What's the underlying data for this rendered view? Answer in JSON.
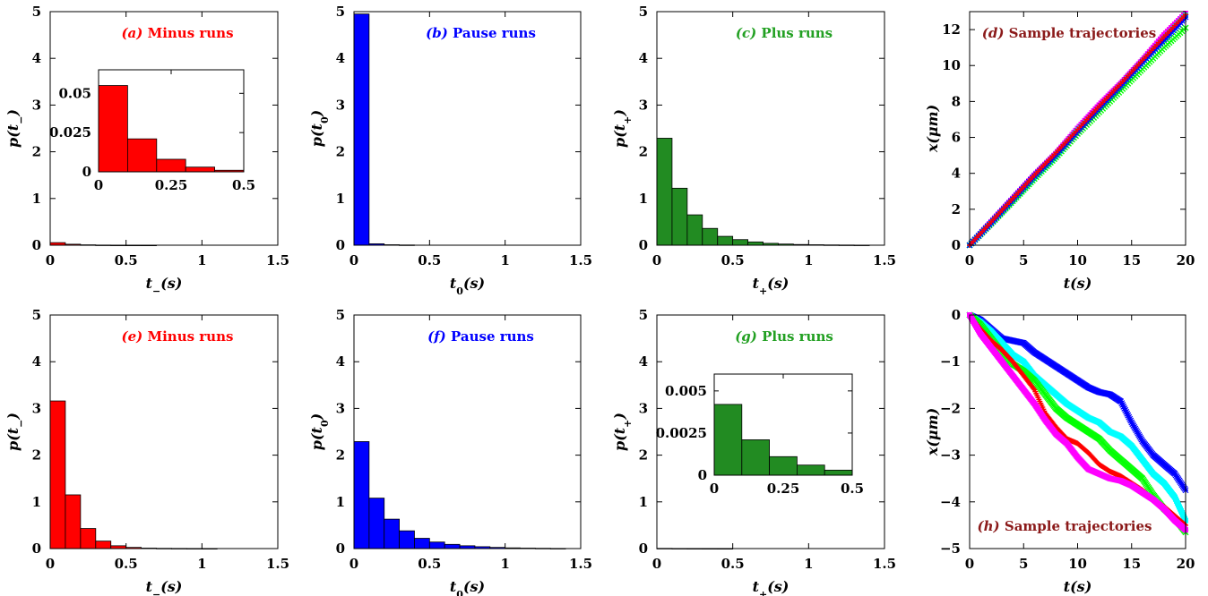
{
  "chart_data": [
    {
      "panel": "a",
      "type": "bar",
      "title_letter": "(a)",
      "title": "Minus runs",
      "title_color": "#ff0000",
      "xlabel": "t−(s)",
      "ylabel": "p(t−)",
      "xlim": [
        0,
        1.5
      ],
      "ylim": [
        0,
        5
      ],
      "xticks": [
        "0",
        "0.5",
        "1",
        "1.5"
      ],
      "yticks": [
        "0",
        "1",
        "2",
        "3",
        "4",
        "5"
      ],
      "bar_color": "#ff0000",
      "bin_width": 0.1,
      "bins": [
        0,
        0.1,
        0.2,
        0.3,
        0.4,
        0.5,
        0.6
      ],
      "values": [
        0.055,
        0.021,
        0.008,
        0.003,
        0.001,
        0.0005,
        0.0002
      ],
      "inset": {
        "xlim": [
          0,
          0.5
        ],
        "ylim": [
          0,
          0.065
        ],
        "xticks": [
          "0",
          "0.25",
          "0.5"
        ],
        "yticks": [
          "0",
          "0.025",
          "0.05"
        ],
        "bins": [
          0,
          0.1,
          0.2,
          0.3,
          0.4
        ],
        "values": [
          0.055,
          0.021,
          0.008,
          0.003,
          0.001
        ]
      }
    },
    {
      "panel": "b",
      "type": "bar",
      "title_letter": "(b)",
      "title": "Pause runs",
      "title_color": "#0000ff",
      "xlabel": "t0(s)",
      "ylabel": "p(t0)",
      "xlim": [
        0,
        1.5
      ],
      "ylim": [
        0,
        5
      ],
      "xticks": [
        "0",
        "0.5",
        "1",
        "1.5"
      ],
      "yticks": [
        "0",
        "1",
        "2",
        "3",
        "4",
        "5"
      ],
      "bar_color": "#0000ff",
      "bin_width": 0.1,
      "bins": [
        0,
        0.1,
        0.2,
        0.3
      ],
      "values": [
        4.95,
        0.03,
        0.01,
        0.005
      ]
    },
    {
      "panel": "c",
      "type": "bar",
      "title_letter": "(c)",
      "title": "Plus runs",
      "title_color": "#22a022",
      "xlabel": "t+(s)",
      "ylabel": "p(t+)",
      "xlim": [
        0,
        1.5
      ],
      "ylim": [
        0,
        5
      ],
      "xticks": [
        "0",
        "0.5",
        "1",
        "1.5"
      ],
      "yticks": [
        "0",
        "1",
        "2",
        "3",
        "4",
        "5"
      ],
      "bar_color": "#228b22",
      "bin_width": 0.1,
      "bins": [
        0,
        0.1,
        0.2,
        0.3,
        0.4,
        0.5,
        0.6,
        0.7,
        0.8,
        0.9,
        1.0,
        1.1,
        1.2,
        1.3
      ],
      "values": [
        2.29,
        1.22,
        0.65,
        0.36,
        0.19,
        0.12,
        0.07,
        0.04,
        0.025,
        0.015,
        0.01,
        0.006,
        0.004,
        0.002
      ]
    },
    {
      "panel": "d",
      "type": "scatter",
      "title_letter": "(d)",
      "title": "Sample trajectories",
      "title_color": "#8b1a1a",
      "xlabel": "t(s)",
      "ylabel": "x(μm)",
      "xlim": [
        0,
        20
      ],
      "ylim": [
        0,
        13
      ],
      "xticks": [
        "0",
        "5",
        "10",
        "15",
        "20"
      ],
      "yticks": [
        "0",
        "2",
        "4",
        "6",
        "8",
        "10",
        "12"
      ],
      "series": [
        {
          "color": "#ff00ff",
          "marker": "square",
          "points": [
            [
              0,
              0
            ],
            [
              2,
              1.3
            ],
            [
              4,
              2.6
            ],
            [
              6,
              3.9
            ],
            [
              8,
              5.1
            ],
            [
              10,
              6.5
            ],
            [
              12,
              7.8
            ],
            [
              14,
              9.0
            ],
            [
              16,
              10.3
            ],
            [
              18,
              11.7
            ],
            [
              20,
              12.9
            ]
          ]
        },
        {
          "color": "#00ffff",
          "marker": "square",
          "points": [
            [
              0,
              0
            ],
            [
              2,
              1.25
            ],
            [
              4,
              2.5
            ],
            [
              6,
              3.8
            ],
            [
              8,
              5.0
            ],
            [
              10,
              6.4
            ],
            [
              12,
              7.6
            ],
            [
              14,
              8.9
            ],
            [
              16,
              10.2
            ],
            [
              18,
              11.5
            ],
            [
              20,
              12.8
            ]
          ]
        },
        {
          "color": "#00ff00",
          "marker": "x",
          "points": [
            [
              0,
              0
            ],
            [
              2,
              1.2
            ],
            [
              4,
              2.45
            ],
            [
              6,
              3.7
            ],
            [
              8,
              4.9
            ],
            [
              10,
              6.2
            ],
            [
              12,
              7.4
            ],
            [
              14,
              8.6
            ],
            [
              16,
              9.8
            ],
            [
              18,
              11.0
            ],
            [
              20,
              12.1
            ]
          ]
        },
        {
          "color": "#0000ff",
          "marker": "star",
          "points": [
            [
              0,
              0
            ],
            [
              2,
              1.25
            ],
            [
              4,
              2.55
            ],
            [
              6,
              3.85
            ],
            [
              8,
              5.05
            ],
            [
              10,
              6.35
            ],
            [
              12,
              7.65
            ],
            [
              14,
              8.9
            ],
            [
              16,
              10.2
            ],
            [
              18,
              11.45
            ],
            [
              20,
              12.7
            ]
          ]
        },
        {
          "color": "#ff0000",
          "marker": "plus",
          "points": [
            [
              0,
              0
            ],
            [
              2,
              1.3
            ],
            [
              4,
              2.6
            ],
            [
              6,
              3.9
            ],
            [
              8,
              5.15
            ],
            [
              10,
              6.45
            ],
            [
              12,
              7.75
            ],
            [
              14,
              9.0
            ],
            [
              16,
              10.3
            ],
            [
              18,
              11.6
            ],
            [
              20,
              12.85
            ]
          ]
        }
      ]
    },
    {
      "panel": "e",
      "type": "bar",
      "title_letter": "(e)",
      "title": "Minus runs",
      "title_color": "#ff0000",
      "xlabel": "t−(s)",
      "ylabel": "p(t−)",
      "xlim": [
        0,
        1.5
      ],
      "ylim": [
        0,
        5
      ],
      "xticks": [
        "0",
        "0.5",
        "1",
        "1.5"
      ],
      "yticks": [
        "0",
        "1",
        "2",
        "3",
        "4",
        "5"
      ],
      "bar_color": "#ff0000",
      "bin_width": 0.1,
      "bins": [
        0,
        0.1,
        0.2,
        0.3,
        0.4,
        0.5,
        0.6,
        0.7,
        0.8,
        0.9,
        1.0
      ],
      "values": [
        3.16,
        1.15,
        0.43,
        0.16,
        0.06,
        0.025,
        0.01,
        0.005,
        0.003,
        0.002,
        0.001
      ]
    },
    {
      "panel": "f",
      "type": "bar",
      "title_letter": "(f)",
      "title": "Pause runs",
      "title_color": "#0000ff",
      "xlabel": "t0(s)",
      "ylabel": "p(t0)",
      "xlim": [
        0,
        1.5
      ],
      "ylim": [
        0,
        5
      ],
      "xticks": [
        "0",
        "0.5",
        "1",
        "1.5"
      ],
      "yticks": [
        "0",
        "1",
        "2",
        "3",
        "4",
        "5"
      ],
      "bar_color": "#0000ff",
      "bin_width": 0.1,
      "bins": [
        0,
        0.1,
        0.2,
        0.3,
        0.4,
        0.5,
        0.6,
        0.7,
        0.8,
        0.9,
        1.0,
        1.1,
        1.2,
        1.3
      ],
      "values": [
        2.29,
        1.08,
        0.63,
        0.38,
        0.22,
        0.14,
        0.09,
        0.06,
        0.04,
        0.025,
        0.015,
        0.01,
        0.006,
        0.003
      ]
    },
    {
      "panel": "g",
      "type": "bar",
      "title_letter": "(g)",
      "title": "Plus runs",
      "title_color": "#22a022",
      "xlabel": "t+(s)",
      "ylabel": "p(t+)",
      "xlim": [
        0,
        1.5
      ],
      "ylim": [
        0,
        5
      ],
      "xticks": [
        "0",
        "0.5",
        "1",
        "1.5"
      ],
      "yticks": [
        "0",
        "1",
        "2",
        "3",
        "4",
        "5"
      ],
      "bar_color": "#228b22",
      "bin_width": 0.1,
      "bins": [
        0,
        0.1,
        0.2,
        0.3,
        0.4
      ],
      "values": [
        0.0042,
        0.0021,
        0.0011,
        0.0006,
        0.0003
      ],
      "inset": {
        "xlim": [
          0,
          0.5
        ],
        "ylim": [
          0,
          0.006
        ],
        "xticks": [
          "0",
          "0.25",
          "0.5"
        ],
        "yticks": [
          "0",
          "0.0025",
          "0.005"
        ],
        "bins": [
          0,
          0.1,
          0.2,
          0.3,
          0.4
        ],
        "values": [
          0.0042,
          0.0021,
          0.0011,
          0.0006,
          0.0003
        ]
      }
    },
    {
      "panel": "h",
      "type": "scatter",
      "title_letter": "(h)",
      "title": "Sample trajectories",
      "title_color": "#8b1a1a",
      "xlabel": "t(s)",
      "ylabel": "x(μm)",
      "xlim": [
        0,
        20
      ],
      "ylim": [
        -5,
        0
      ],
      "xticks": [
        "0",
        "5",
        "10",
        "15",
        "20"
      ],
      "yticks": [
        "0",
        "−1",
        "−2",
        "−3",
        "−4",
        "−5"
      ],
      "series": [
        {
          "color": "#0000ff",
          "marker": "star",
          "points": [
            [
              0,
              0
            ],
            [
              1,
              -0.1
            ],
            [
              2,
              -0.3
            ],
            [
              3,
              -0.5
            ],
            [
              4,
              -0.55
            ],
            [
              5,
              -0.6
            ],
            [
              6,
              -0.8
            ],
            [
              7,
              -0.95
            ],
            [
              8,
              -1.1
            ],
            [
              9,
              -1.25
            ],
            [
              10,
              -1.4
            ],
            [
              11,
              -1.55
            ],
            [
              12,
              -1.65
            ],
            [
              13,
              -1.7
            ],
            [
              14,
              -1.85
            ],
            [
              15,
              -2.3
            ],
            [
              16,
              -2.7
            ],
            [
              17,
              -3.0
            ],
            [
              18,
              -3.2
            ],
            [
              19,
              -3.4
            ],
            [
              20,
              -3.75
            ]
          ]
        },
        {
          "color": "#00ffff",
          "marker": "square",
          "points": [
            [
              0,
              0
            ],
            [
              1,
              -0.15
            ],
            [
              2,
              -0.35
            ],
            [
              3,
              -0.6
            ],
            [
              4,
              -0.85
            ],
            [
              5,
              -1.0
            ],
            [
              6,
              -1.3
            ],
            [
              7,
              -1.5
            ],
            [
              8,
              -1.7
            ],
            [
              9,
              -1.9
            ],
            [
              10,
              -2.05
            ],
            [
              11,
              -2.2
            ],
            [
              12,
              -2.3
            ],
            [
              13,
              -2.5
            ],
            [
              14,
              -2.6
            ],
            [
              15,
              -2.8
            ],
            [
              16,
              -3.1
            ],
            [
              17,
              -3.4
            ],
            [
              18,
              -3.6
            ],
            [
              19,
              -3.9
            ],
            [
              20,
              -4.4
            ]
          ]
        },
        {
          "color": "#00ff00",
          "marker": "x",
          "points": [
            [
              0,
              0
            ],
            [
              1,
              -0.2
            ],
            [
              2,
              -0.5
            ],
            [
              3,
              -0.8
            ],
            [
              4,
              -1.05
            ],
            [
              5,
              -1.2
            ],
            [
              6,
              -1.4
            ],
            [
              7,
              -1.7
            ],
            [
              8,
              -2.0
            ],
            [
              9,
              -2.2
            ],
            [
              10,
              -2.35
            ],
            [
              11,
              -2.5
            ],
            [
              12,
              -2.65
            ],
            [
              13,
              -2.9
            ],
            [
              14,
              -3.1
            ],
            [
              15,
              -3.3
            ],
            [
              16,
              -3.5
            ],
            [
              17,
              -3.85
            ],
            [
              18,
              -4.15
            ],
            [
              19,
              -4.35
            ],
            [
              20,
              -4.65
            ]
          ]
        },
        {
          "color": "#ff0000",
          "marker": "plus",
          "points": [
            [
              0,
              0
            ],
            [
              1,
              -0.3
            ],
            [
              2,
              -0.55
            ],
            [
              3,
              -0.75
            ],
            [
              4,
              -1.0
            ],
            [
              5,
              -1.3
            ],
            [
              6,
              -1.6
            ],
            [
              7,
              -2.1
            ],
            [
              8,
              -2.4
            ],
            [
              9,
              -2.65
            ],
            [
              10,
              -2.75
            ],
            [
              11,
              -2.95
            ],
            [
              12,
              -3.2
            ],
            [
              13,
              -3.35
            ],
            [
              14,
              -3.45
            ],
            [
              15,
              -3.6
            ],
            [
              16,
              -3.75
            ],
            [
              17,
              -3.95
            ],
            [
              18,
              -4.1
            ],
            [
              19,
              -4.3
            ],
            [
              20,
              -4.5
            ]
          ]
        },
        {
          "color": "#ff00ff",
          "marker": "square",
          "points": [
            [
              0,
              0
            ],
            [
              1,
              -0.4
            ],
            [
              2,
              -0.7
            ],
            [
              3,
              -1.0
            ],
            [
              4,
              -1.3
            ],
            [
              5,
              -1.6
            ],
            [
              6,
              -1.9
            ],
            [
              7,
              -2.25
            ],
            [
              8,
              -2.55
            ],
            [
              9,
              -2.75
            ],
            [
              10,
              -3.05
            ],
            [
              11,
              -3.3
            ],
            [
              12,
              -3.4
            ],
            [
              13,
              -3.5
            ],
            [
              14,
              -3.55
            ],
            [
              15,
              -3.65
            ],
            [
              16,
              -3.8
            ],
            [
              17,
              -3.95
            ],
            [
              18,
              -4.15
            ],
            [
              19,
              -4.4
            ],
            [
              20,
              -4.6
            ]
          ]
        }
      ]
    }
  ]
}
